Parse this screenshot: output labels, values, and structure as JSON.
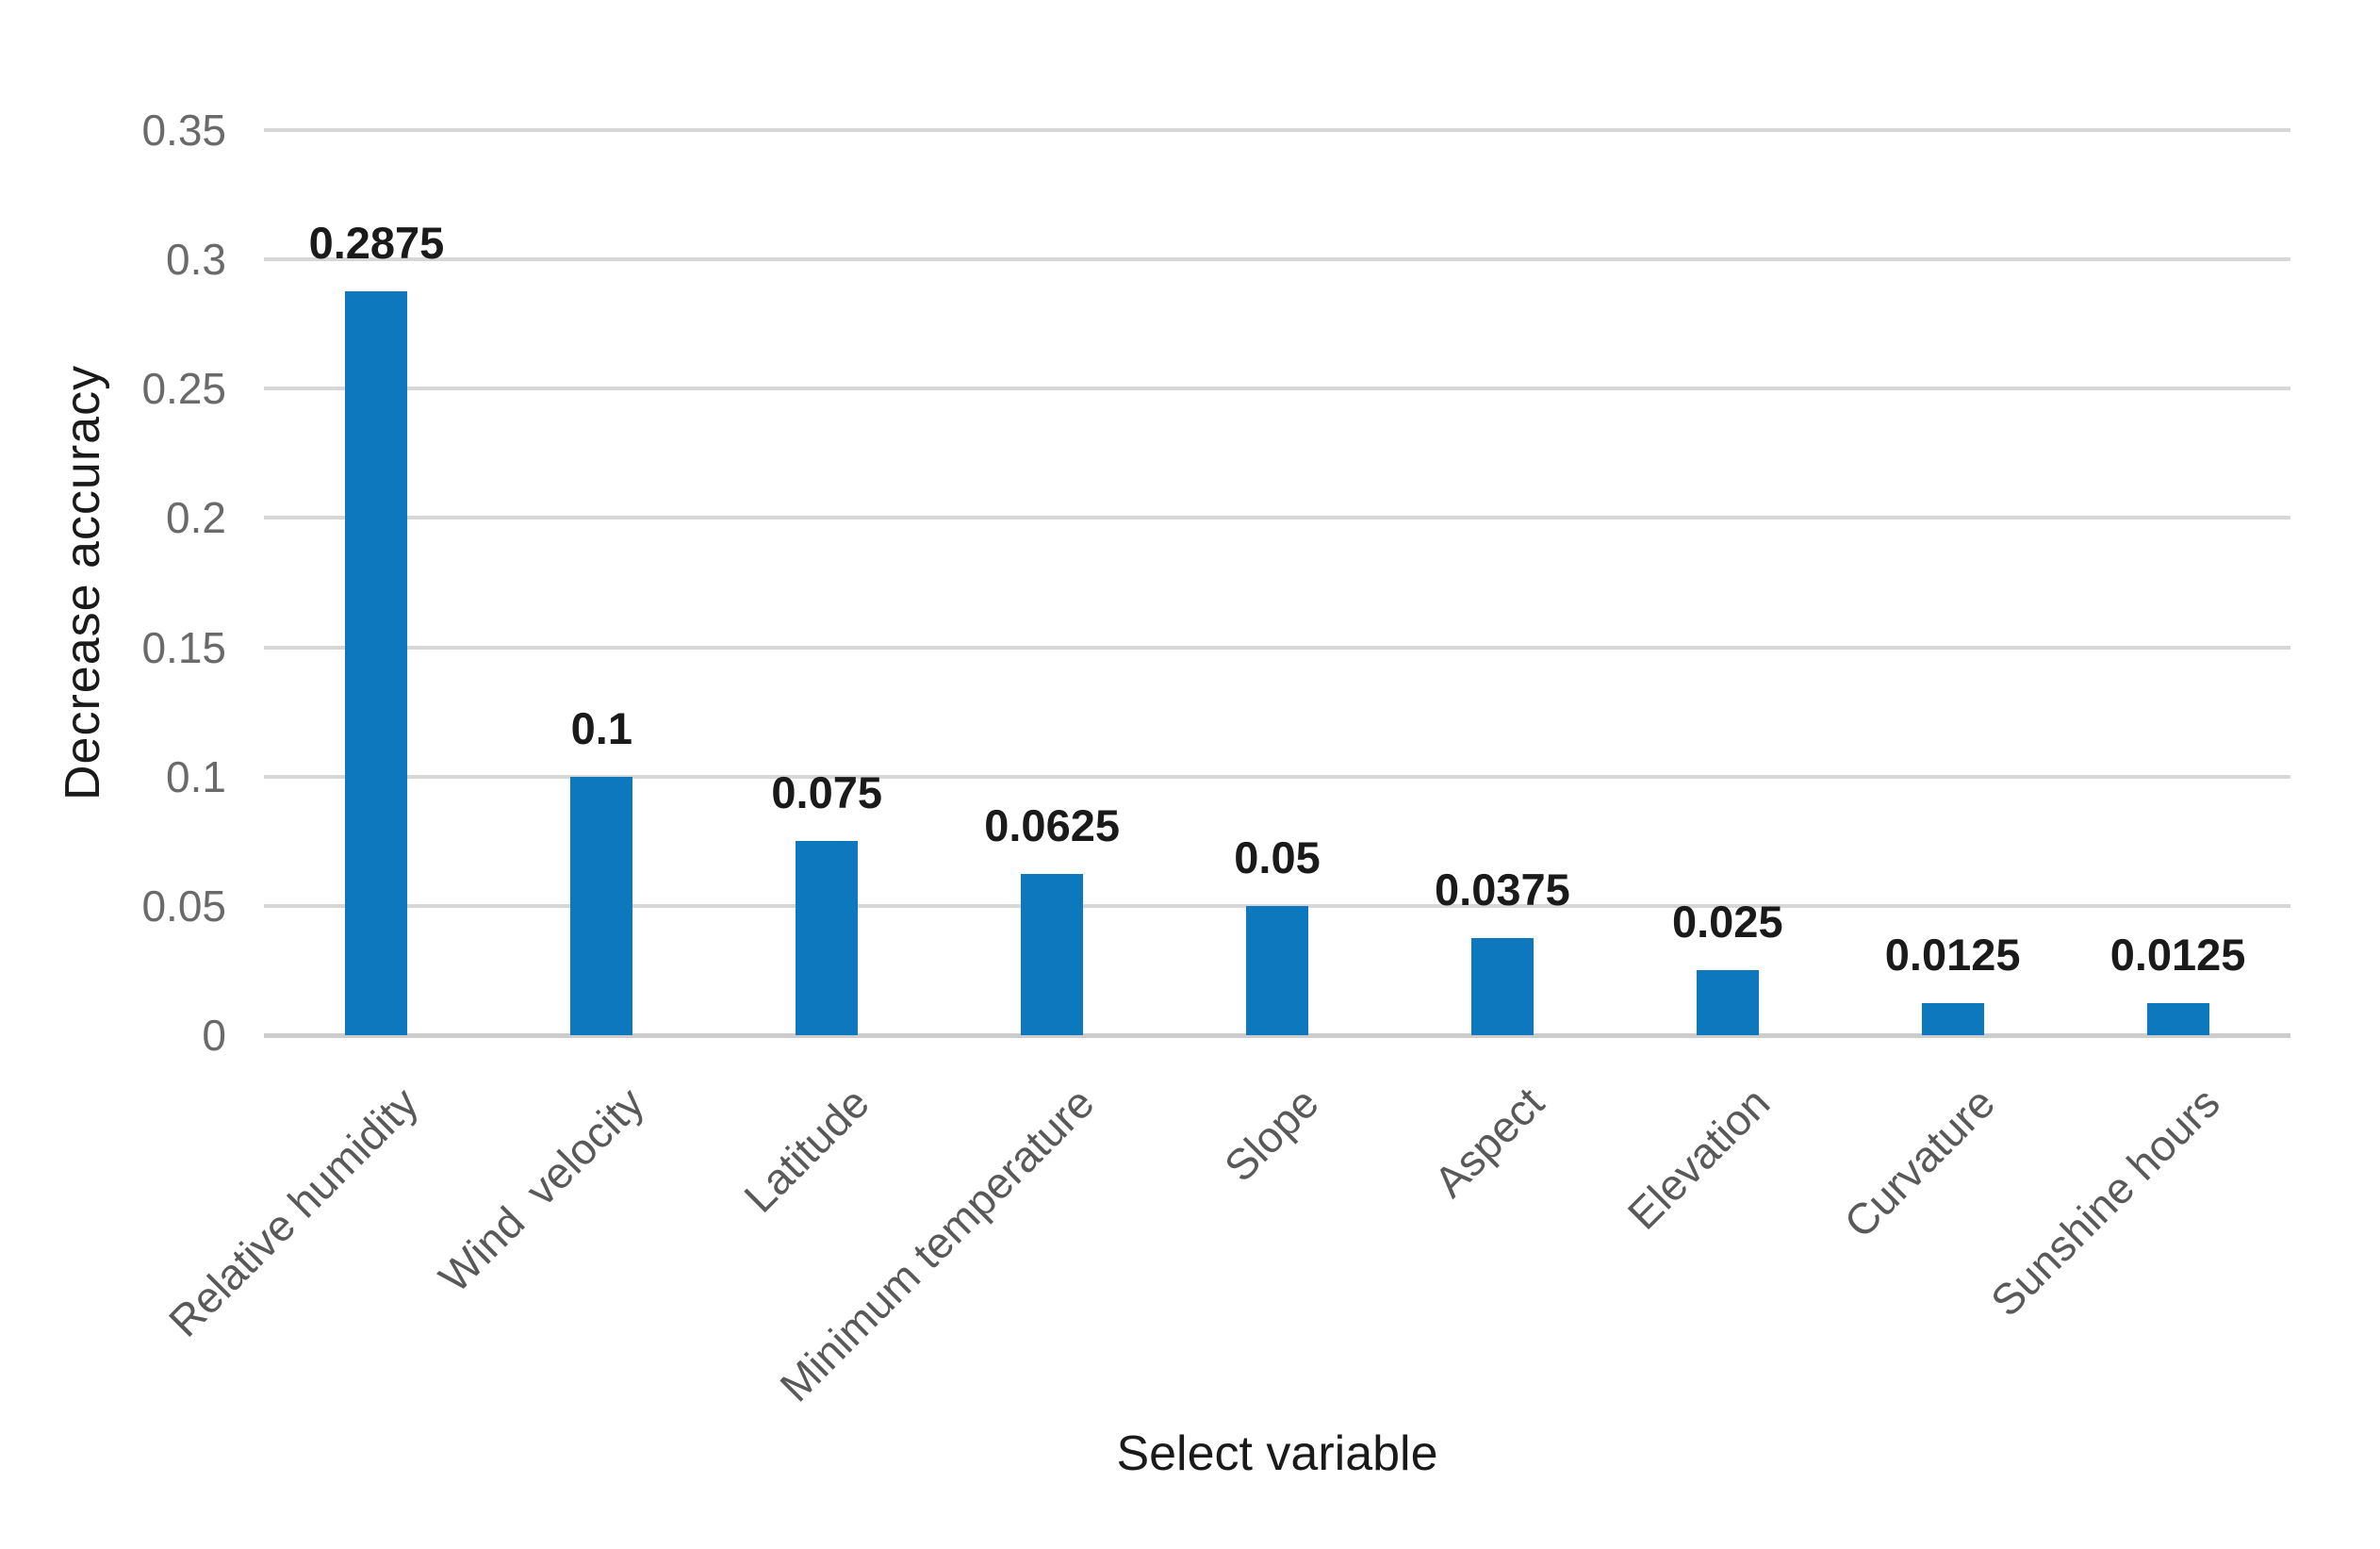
{
  "chart_data": {
    "type": "bar",
    "title": "",
    "categories": [
      "Relative humidity",
      "Wind  velocity",
      "Latitude",
      "Minimum temperature",
      "Slope",
      "Aspect",
      "Elevation",
      "Curvature",
      "Sunshine hours"
    ],
    "values": [
      0.2875,
      0.1,
      0.075,
      0.0625,
      0.05,
      0.0375,
      0.025,
      0.0125,
      0.0125
    ],
    "value_labels": [
      "0.2875",
      "0.1",
      "0.075",
      "0.0625",
      "0.05",
      "0.0375",
      "0.025",
      "0.0125",
      "0.0125"
    ],
    "xlabel": "Select variable",
    "ylabel": "Decrease accuracy",
    "ylim": [
      0,
      0.35
    ],
    "yticks": [
      "0.35",
      "0.3",
      "0.25",
      "0.2",
      "0.15",
      "0.1",
      "0.05",
      "0"
    ],
    "grid": "horizontal-gridlines-on",
    "legend_position": "none",
    "bar_color": "#0e78be",
    "gridline_color": "#d7d7d7",
    "baseline_color": "#cccccc",
    "tick_label_color": "#6a6a6a",
    "category_label_color": "#595959",
    "data_label_color": "#1a1a1a",
    "axis_title_color": "#1a1a1a",
    "background_color": "#ffffff"
  }
}
